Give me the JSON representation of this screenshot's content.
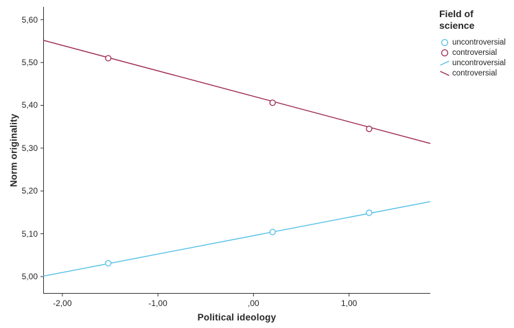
{
  "figure": {
    "background": "#ffffff",
    "axis_color": "#333333"
  },
  "legend": {
    "title": "Field of science",
    "items": [
      {
        "label": "uncontroversial",
        "swatch": "circle",
        "color": "#56c1e8"
      },
      {
        "label": "controversial",
        "swatch": "circle",
        "color": "#9e2a4e"
      },
      {
        "label": "uncontroversial",
        "swatch": "line-up",
        "color": "#56c1e8"
      },
      {
        "label": "controversial",
        "swatch": "line-down",
        "color": "#9e2a4e"
      }
    ]
  },
  "chart_data": {
    "type": "line",
    "title": "",
    "xlabel": "Political ideology",
    "ylabel": "Norm originality",
    "xlim": [
      -2.2,
      1.85
    ],
    "ylim": [
      4.96,
      5.63
    ],
    "grid": false,
    "legend_position": "right",
    "x_ticks": [
      {
        "value": -2,
        "label": "-2,00"
      },
      {
        "value": -1,
        "label": "-1,00"
      },
      {
        "value": 0,
        "label": ",00"
      },
      {
        "value": 1,
        "label": "1,00"
      }
    ],
    "y_ticks": [
      {
        "value": 5.0,
        "label": "5,00"
      },
      {
        "value": 5.1,
        "label": "5,10"
      },
      {
        "value": 5.2,
        "label": "5,20"
      },
      {
        "value": 5.3,
        "label": "5,30"
      },
      {
        "value": 5.4,
        "label": "5,40"
      },
      {
        "value": 5.5,
        "label": "5,50"
      },
      {
        "value": 5.6,
        "label": "5,60"
      }
    ],
    "series": [
      {
        "name": "controversial",
        "color": "#9e2a4e",
        "line": {
          "x": [
            -2.2,
            1.85
          ],
          "y": [
            5.552,
            5.311
          ]
        },
        "markers": [
          {
            "x": -1.52,
            "y": 5.51
          },
          {
            "x": 0.2,
            "y": 5.406
          },
          {
            "x": 1.21,
            "y": 5.345
          }
        ]
      },
      {
        "name": "uncontroversial",
        "color": "#56c1e8",
        "line": {
          "x": [
            -2.2,
            1.85
          ],
          "y": [
            5.001,
            5.175
          ]
        },
        "markers": [
          {
            "x": -1.52,
            "y": 5.031
          },
          {
            "x": 0.2,
            "y": 5.104
          },
          {
            "x": 1.21,
            "y": 5.149
          }
        ]
      }
    ]
  }
}
